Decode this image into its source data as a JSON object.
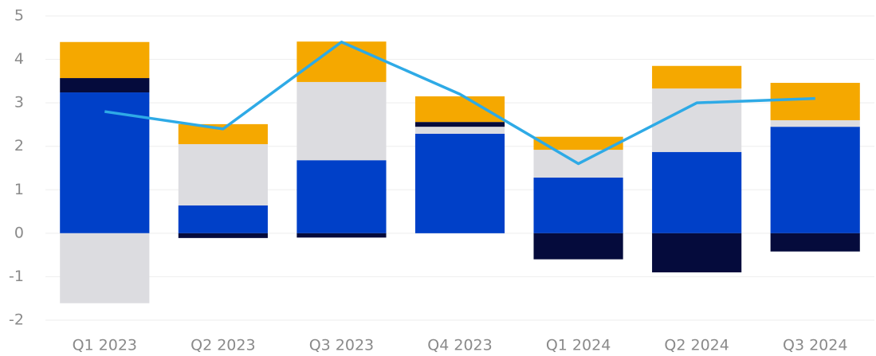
{
  "chart_data": {
    "type": "bar",
    "stacked": true,
    "categories": [
      "Q1 2023",
      "Q2 2023",
      "Q3 2023",
      "Q4 2023",
      "Q1 2024",
      "Q2 2024",
      "Q3 2024"
    ],
    "series": [
      {
        "color": "#0040c8",
        "values": [
          3.24,
          0.64,
          1.68,
          2.29,
          1.28,
          1.87,
          2.45
        ]
      },
      {
        "color": "#dcdce0",
        "values": [
          -1.61,
          1.41,
          1.8,
          0.16,
          0.64,
          1.46,
          0.15
        ]
      },
      {
        "color": "#050b3c",
        "values": [
          0.33,
          -0.11,
          -0.1,
          0.11,
          -0.6,
          -0.9,
          -0.42
        ]
      },
      {
        "color": "#f5a800",
        "values": [
          0.83,
          0.46,
          0.93,
          0.59,
          0.3,
          0.52,
          0.86
        ]
      },
      {
        "type": "line",
        "color": "#2eaae6",
        "values": [
          2.8,
          2.4,
          4.4,
          3.2,
          1.6,
          3.0,
          3.1
        ]
      }
    ],
    "ylim": [
      -2,
      5
    ],
    "yticks": [
      -2,
      -1,
      0,
      1,
      2,
      3,
      4,
      5
    ],
    "grid": true
  }
}
